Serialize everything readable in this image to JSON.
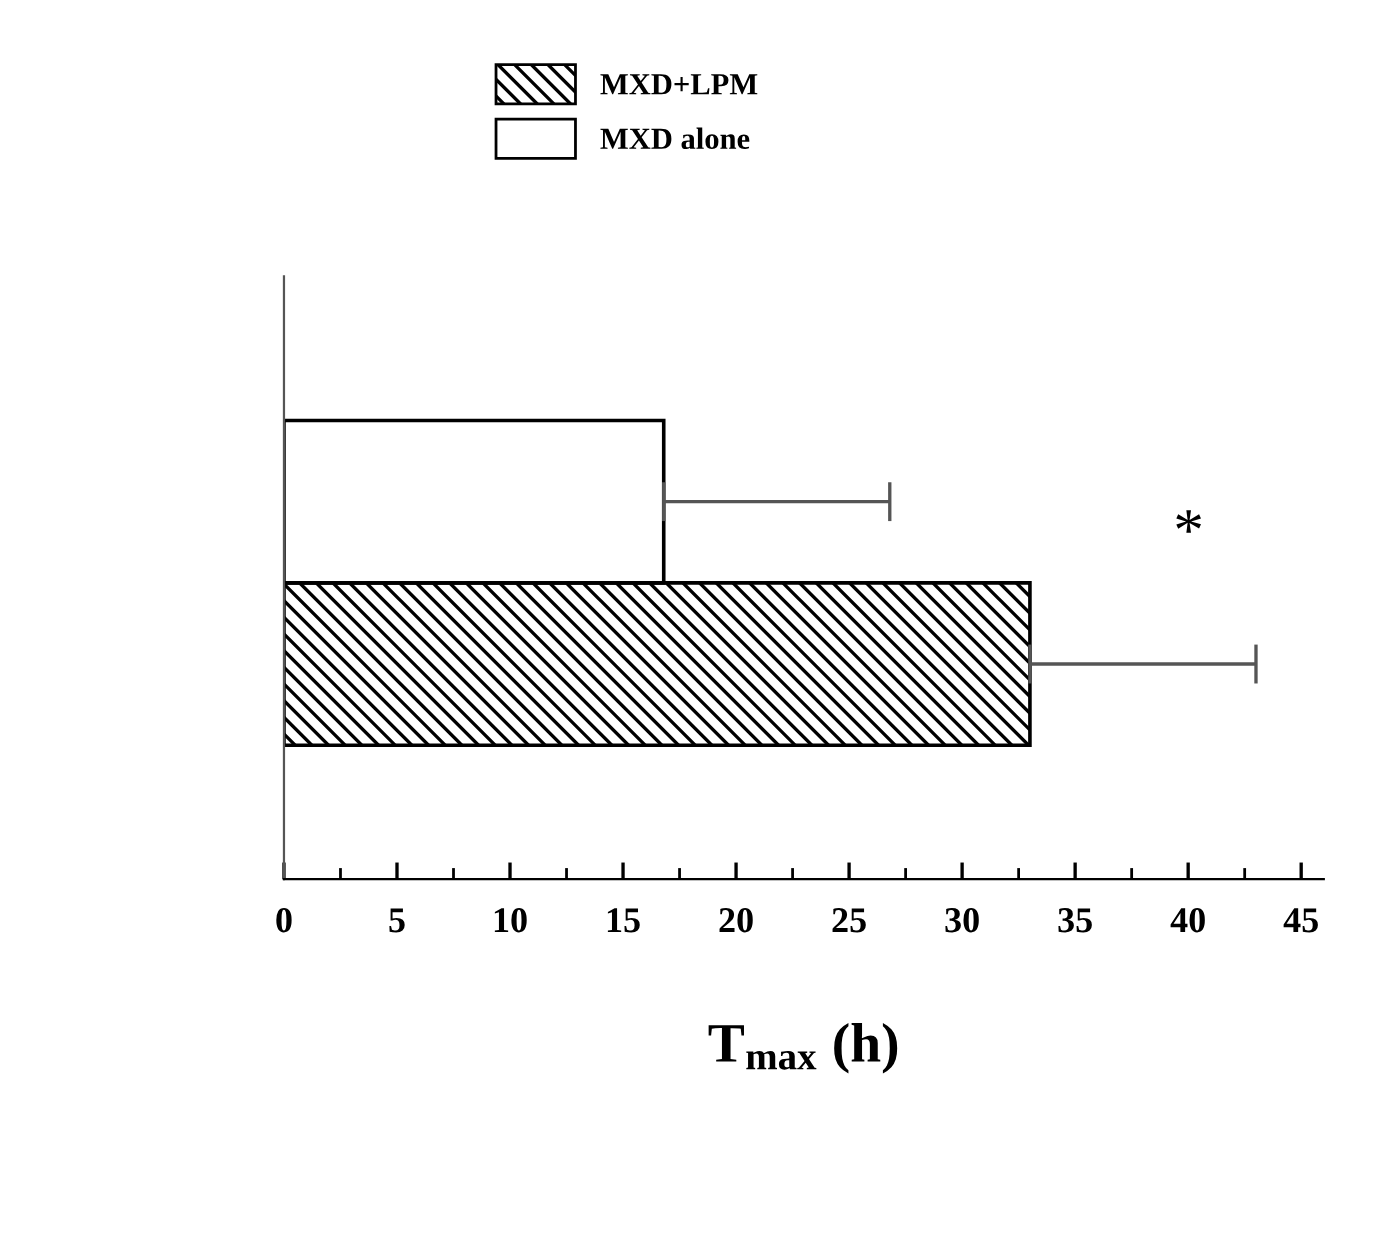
{
  "chart_data": {
    "type": "bar",
    "orientation": "horizontal",
    "xlabel": "T$_{max}$ (h)",
    "categories": [
      null
    ],
    "series": [
      {
        "name": "MXD+LPM",
        "color": "#000000",
        "values": [
          33.0
        ],
        "errors": [
          10.0
        ]
      },
      {
        "name": "MXD alone",
        "color": "#ffffff",
        "values": [
          16.8
        ],
        "errors": [
          10.0
        ]
      }
    ],
    "xlim": [
      0,
      46
    ],
    "xticks": [
      0,
      5,
      10,
      15,
      20,
      25,
      30,
      35,
      40,
      45
    ],
    "annotations": [
      "*"
    ],
    "legend": "top",
    "grid": false
  }
}
